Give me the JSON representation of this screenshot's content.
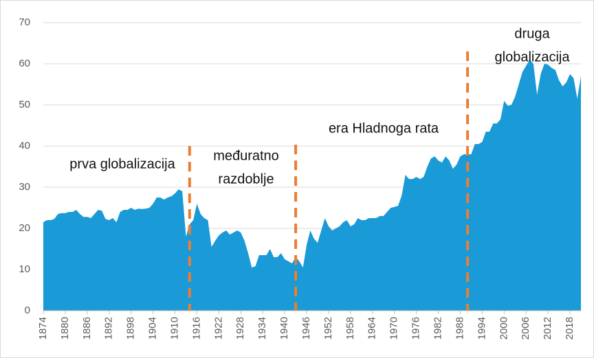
{
  "chart_data": {
    "type": "area",
    "x": [
      1874,
      1875,
      1876,
      1877,
      1878,
      1879,
      1880,
      1881,
      1882,
      1883,
      1884,
      1885,
      1886,
      1887,
      1888,
      1889,
      1890,
      1891,
      1892,
      1893,
      1894,
      1895,
      1896,
      1897,
      1898,
      1899,
      1900,
      1901,
      1902,
      1903,
      1904,
      1905,
      1906,
      1907,
      1908,
      1909,
      1910,
      1911,
      1912,
      1913,
      1914,
      1915,
      1916,
      1917,
      1918,
      1919,
      1920,
      1921,
      1922,
      1923,
      1924,
      1925,
      1926,
      1927,
      1928,
      1929,
      1930,
      1931,
      1932,
      1933,
      1934,
      1935,
      1936,
      1937,
      1938,
      1939,
      1940,
      1941,
      1942,
      1943,
      1944,
      1945,
      1946,
      1947,
      1948,
      1949,
      1950,
      1951,
      1952,
      1953,
      1954,
      1955,
      1956,
      1957,
      1958,
      1959,
      1960,
      1961,
      1962,
      1963,
      1964,
      1965,
      1966,
      1967,
      1968,
      1969,
      1970,
      1971,
      1972,
      1973,
      1974,
      1975,
      1976,
      1977,
      1978,
      1979,
      1980,
      1981,
      1982,
      1983,
      1984,
      1985,
      1986,
      1987,
      1988,
      1989,
      1990,
      1991,
      1992,
      1993,
      1994,
      1995,
      1996,
      1997,
      1998,
      1999,
      2000,
      2001,
      2002,
      2003,
      2004,
      2005,
      2006,
      2007,
      2008,
      2009,
      2010,
      2011,
      2012,
      2013,
      2014,
      2015,
      2016,
      2017,
      2018,
      2019,
      2020,
      2021
    ],
    "values": [
      21.5,
      22,
      22,
      22.3,
      23.5,
      23.7,
      23.7,
      24,
      24,
      24.5,
      23.5,
      22.8,
      22.8,
      22.5,
      23.5,
      24.5,
      24.3,
      22.3,
      22,
      22.5,
      21.5,
      24,
      24.5,
      24.5,
      25,
      24.5,
      24.8,
      24.7,
      24.8,
      25,
      26,
      27.5,
      27.5,
      27,
      27.5,
      27.8,
      28.5,
      29.5,
      29,
      18,
      21,
      22,
      26,
      23.5,
      22.5,
      22,
      15.5,
      17,
      18.3,
      19,
      19.5,
      18.5,
      19,
      19.5,
      19,
      17,
      14,
      10.5,
      10.8,
      13.5,
      13.5,
      13.5,
      15,
      13,
      13,
      14,
      12.5,
      12,
      11.5,
      13,
      12,
      10.5,
      16,
      19.5,
      17.5,
      16.5,
      19.5,
      22.5,
      20.5,
      19.5,
      20,
      20.5,
      21.5,
      22,
      20.5,
      21,
      22.5,
      22,
      22,
      22.5,
      22.5,
      22.5,
      23,
      23,
      24,
      25,
      25.2,
      25.5,
      28,
      33,
      32,
      32,
      32.5,
      32,
      32.5,
      35,
      37,
      37.5,
      36.5,
      36,
      37.5,
      36.5,
      34.5,
      35.5,
      37.5,
      38,
      38,
      38,
      40.5,
      40.5,
      41,
      43.5,
      43.5,
      45.5,
      45.5,
      46.5,
      51,
      49.8,
      50,
      52,
      55,
      58,
      59.5,
      61,
      60,
      52.5,
      57.5,
      60,
      59.8,
      59,
      58.5,
      56,
      54.5,
      55.5,
      57.5,
      56.5,
      51.5,
      57
    ],
    "color": "#1a9ad6",
    "xlim": [
      1874,
      2021
    ],
    "xticks": [
      1874,
      1880,
      1886,
      1892,
      1898,
      1904,
      1910,
      1916,
      1922,
      1928,
      1934,
      1940,
      1946,
      1952,
      1958,
      1964,
      1970,
      1976,
      1982,
      1988,
      1994,
      2000,
      2006,
      2012,
      2018
    ],
    "ylim": [
      0,
      70
    ],
    "yticks": [
      0,
      10,
      20,
      30,
      40,
      50,
      60,
      70
    ],
    "grid": true,
    "dividers": [
      1914,
      1943,
      1990
    ],
    "divider_color": "#ed7d31",
    "annotations": [
      [
        "prva globalizacija"
      ],
      [
        "međuratno",
        "razdoblje"
      ],
      [
        "era Hladnoga rata"
      ],
      [
        "druga",
        "globalizacija"
      ]
    ]
  }
}
